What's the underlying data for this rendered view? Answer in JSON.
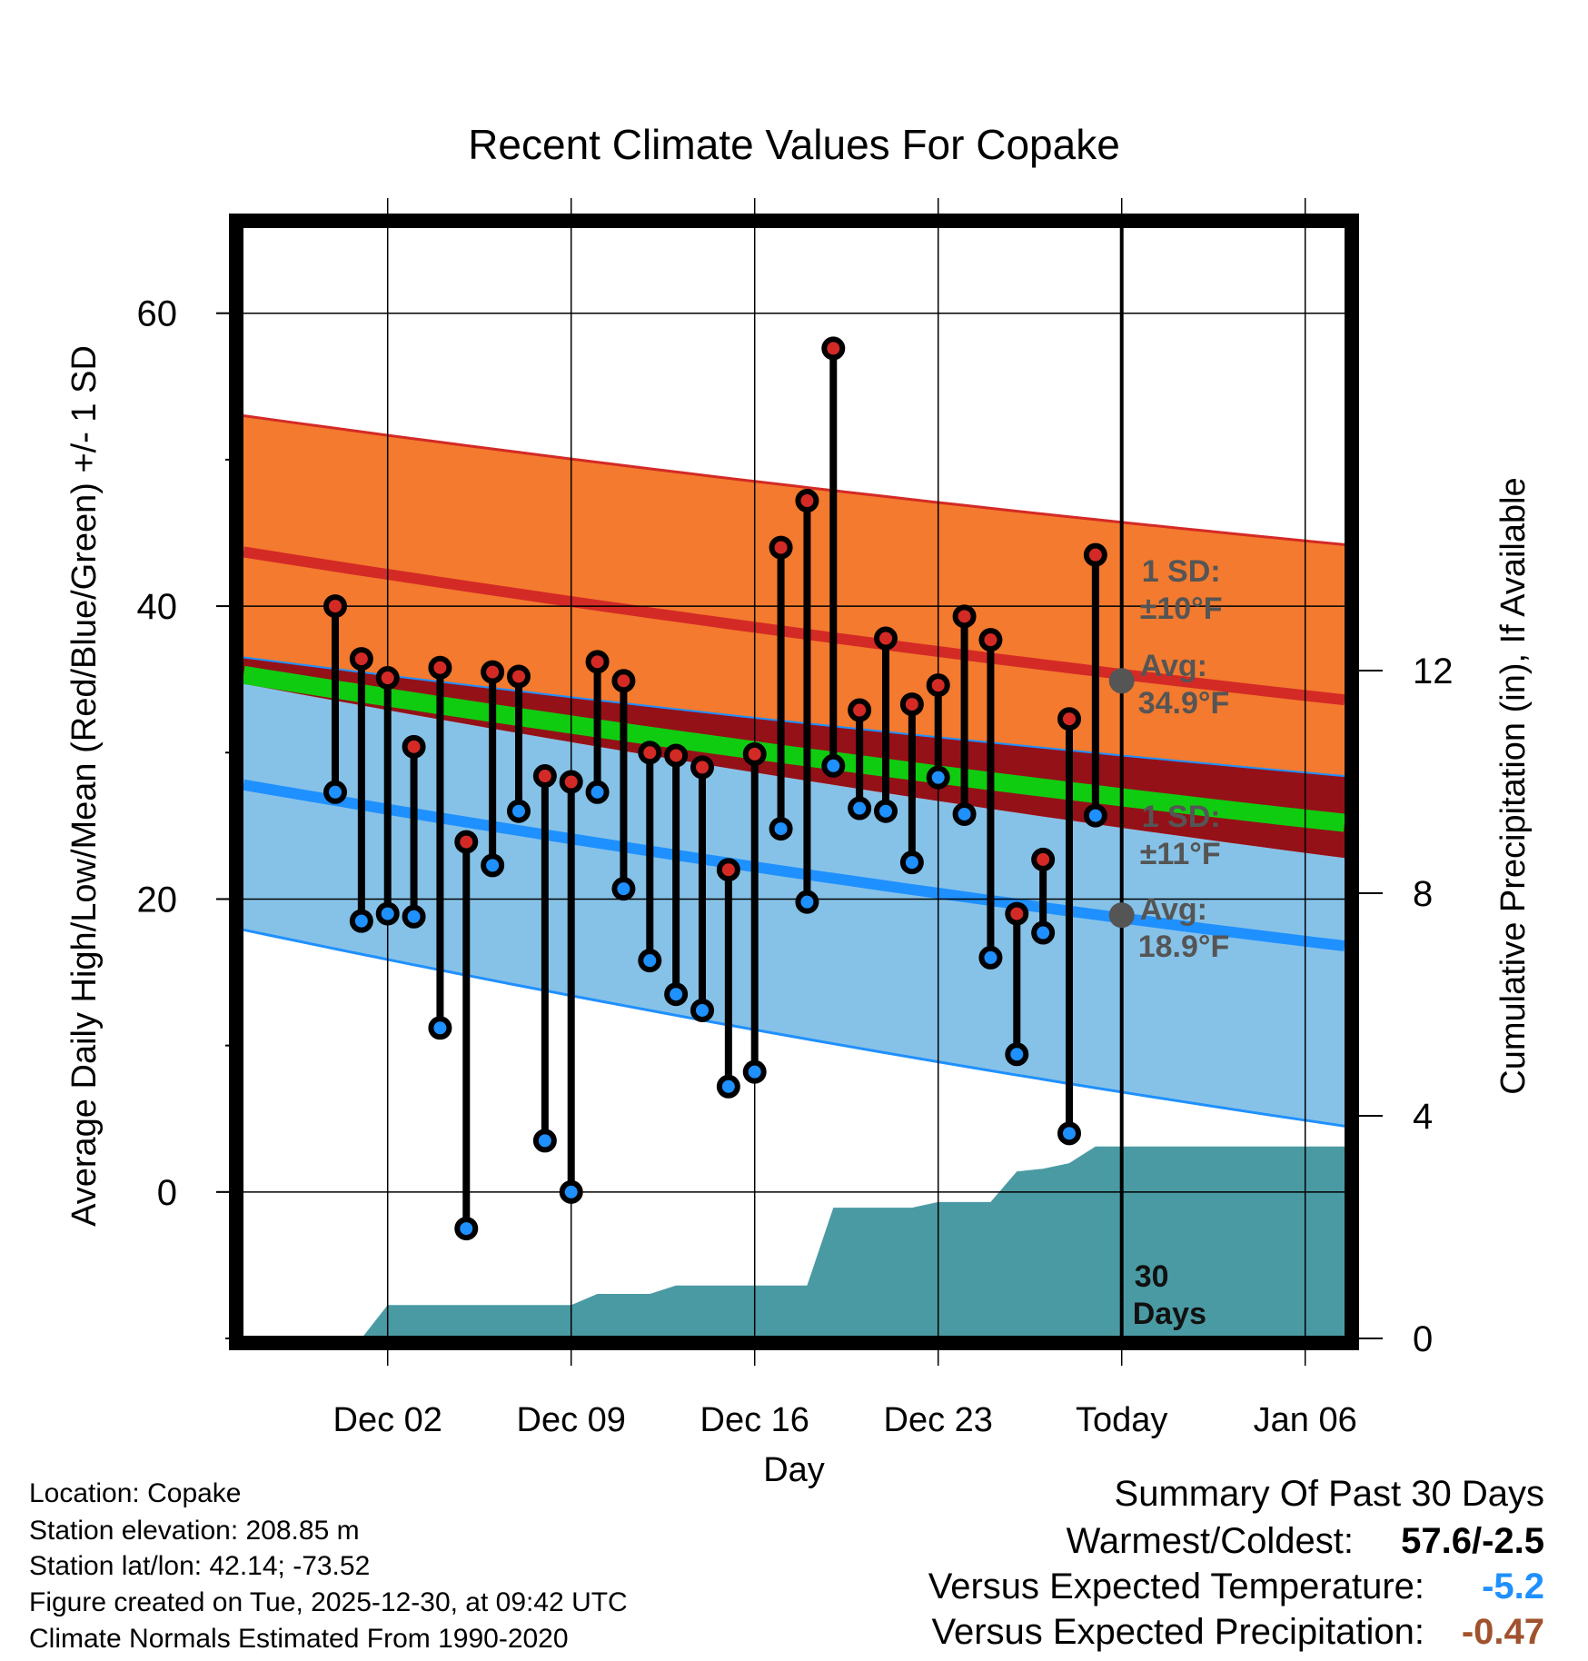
{
  "title": "Recent Climate Values For Copake",
  "chart_data": {
    "type": "line",
    "title": "Recent Climate Values For Copake",
    "xlabel": "Day",
    "ylabel": "Average Daily High/Low/Mean (Red/Blue/Green) +/- 1 SD",
    "ylabel_right": "Cumulative Precipitation (in), If Available",
    "ylim": [
      -10,
      66
    ],
    "ylim_right": [
      0,
      20
    ],
    "yticks": [
      0,
      20,
      40,
      60
    ],
    "yticks_right": [
      0,
      4,
      8,
      12
    ],
    "xlim_days": [
      -33.5,
      8.5
    ],
    "xticks": [
      {
        "day": -28,
        "label": "Dec 02"
      },
      {
        "day": -21,
        "label": "Dec 09"
      },
      {
        "day": -14,
        "label": "Dec 16"
      },
      {
        "day": -7,
        "label": "Dec 23"
      },
      {
        "day": 0,
        "label": "Today"
      },
      {
        "day": 7,
        "label": "Jan 06"
      }
    ],
    "normals": {
      "days": [
        -33.5,
        8.5
      ],
      "high_avg": [
        43.7,
        33.6
      ],
      "high_sd_upper": [
        53.0,
        44.2
      ],
      "high_sd_lower": [
        36.5,
        28.4
      ],
      "mean": [
        35.3,
        25.2
      ],
      "low_avg": [
        27.8,
        16.8
      ],
      "low_sd_upper": [
        34.7,
        22.8
      ],
      "low_sd_lower": [
        17.9,
        4.5
      ]
    },
    "observations": {
      "days": [
        -30,
        -29,
        -28,
        -27,
        -26,
        -25,
        -24,
        -23,
        -22,
        -21,
        -20,
        -19,
        -18,
        -17,
        -16,
        -15,
        -14,
        -13,
        -12,
        -11,
        -10,
        -9,
        -8,
        -7,
        -6,
        -5,
        -4,
        -3,
        -2,
        -1
      ],
      "high": [
        40.0,
        36.4,
        35.1,
        30.4,
        35.8,
        23.9,
        35.5,
        35.2,
        28.4,
        28.0,
        36.2,
        34.9,
        30.0,
        29.8,
        29.0,
        22.0,
        29.9,
        44.0,
        47.2,
        57.6,
        32.9,
        37.8,
        33.3,
        34.6,
        39.3,
        37.7,
        19.0,
        22.7,
        32.3,
        43.5
      ],
      "low": [
        27.3,
        18.5,
        19.0,
        18.8,
        11.2,
        -2.5,
        22.3,
        26.0,
        3.5,
        0.0,
        27.3,
        20.7,
        15.8,
        13.5,
        12.4,
        7.2,
        8.2,
        24.8,
        19.8,
        29.1,
        26.2,
        26.0,
        22.5,
        28.3,
        25.8,
        16.0,
        9.4,
        17.7,
        4.0,
        25.7
      ]
    },
    "precipitation": {
      "days": [
        -30,
        -29,
        -28,
        -27,
        -26,
        -25,
        -24,
        -23,
        -22,
        -21,
        -20,
        -19,
        -18,
        -17,
        -16,
        -15,
        -14,
        -13,
        -12,
        -11,
        -10,
        -9,
        -8,
        -7,
        -6,
        -5,
        -4,
        -3,
        -2,
        -1,
        0,
        8.5
      ],
      "values": [
        0.0,
        0.0,
        0.6,
        0.6,
        0.6,
        0.6,
        0.6,
        0.6,
        0.6,
        0.6,
        0.8,
        0.8,
        0.8,
        0.95,
        0.95,
        0.95,
        0.95,
        0.95,
        0.95,
        2.35,
        2.35,
        2.35,
        2.35,
        2.45,
        2.45,
        2.45,
        3.0,
        3.05,
        3.15,
        3.45,
        3.45,
        3.45
      ]
    },
    "annotations": [
      {
        "label": "1 SD:",
        "value": "±10°F",
        "series": "high"
      },
      {
        "label": "Avg:",
        "value": "34.9°F",
        "series": "high"
      },
      {
        "label": "1 SD:",
        "value": "±11°F",
        "series": "low"
      },
      {
        "label": "Avg:",
        "value": "18.9°F",
        "series": "low"
      },
      {
        "label": "30",
        "value": "Days",
        "series": "window"
      }
    ],
    "today_high_avg": 34.9,
    "today_low_avg": 18.9
  },
  "colors": {
    "high_band": "#f37a2e",
    "high_line": "#d42a26",
    "mean_band": "#941118",
    "mean_line": "#10cc10",
    "low_band": "#86c2e8",
    "low_line": "#1f90ff",
    "precip": "#4a9aa3",
    "marker_high": "#d42a26",
    "marker_low": "#1f90ff",
    "annotation": "#555555",
    "bad": "#1f90ff",
    "dry": "#a0522d"
  },
  "info": {
    "location": "Location: Copake",
    "elevation": "Station elevation: 208.85 m",
    "latlon": "Station lat/lon: 42.14; -73.52",
    "created": "Figure created on Tue, 2025-12-30, at 09:42 UTC",
    "normals": "Climate Normals Estimated From 1990-2020"
  },
  "summary": {
    "title": "Summary Of Past 30 Days",
    "warm_cold_label": "Warmest/Coldest:",
    "warm_cold_value": "57.6/-2.5",
    "temp_label": "Versus Expected Temperature:",
    "temp_value": "-5.2",
    "precip_label": "Versus Expected Precipitation:",
    "precip_value": "-0.47"
  }
}
